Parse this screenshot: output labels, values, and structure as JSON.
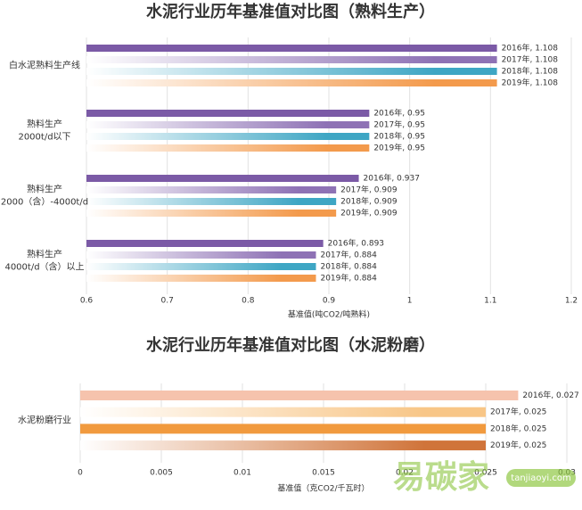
{
  "chart_data": [
    {
      "type": "hbar",
      "title": "水泥行业历年基准值对比图（熟料生产）",
      "categories": [
        [
          "白水泥熟料生产线"
        ],
        [
          "熟料生产",
          "2000t/d以下"
        ],
        [
          "熟料生产",
          "2000（含）-4000t/d"
        ],
        [
          "熟料生产",
          "4000t/d（含）以上"
        ]
      ],
      "series": [
        {
          "name": "2016年",
          "color": "#7b5aa6",
          "gradient": false,
          "values": [
            1.108,
            0.95,
            0.937,
            0.893
          ],
          "value_labels": [
            "2016年, 1.108",
            "2016年, 0.95",
            "2016年, 0.937",
            "2016年, 0.893"
          ]
        },
        {
          "name": "2017年",
          "color": "#8e72b5",
          "gradient": true,
          "values": [
            1.108,
            0.95,
            0.909,
            0.884
          ],
          "value_labels": [
            "2017年, 1.108",
            "2017年, 0.95",
            "2017年, 0.909",
            "2017年, 0.884"
          ]
        },
        {
          "name": "2018年",
          "color": "#3ea6c4",
          "gradient": true,
          "values": [
            1.108,
            0.95,
            0.909,
            0.884
          ],
          "value_labels": [
            "2018年, 1.108",
            "2018年, 0.95",
            "2018年, 0.909",
            "2018年, 0.884"
          ]
        },
        {
          "name": "2019年",
          "color": "#f39a4c",
          "gradient": true,
          "values": [
            1.108,
            0.95,
            0.909,
            0.884
          ],
          "value_labels": [
            "2019年, 1.108",
            "2019年, 0.95",
            "2019年, 0.909",
            "2019年, 0.884"
          ]
        }
      ],
      "xlim": [
        0.6,
        1.2
      ],
      "xticks": [
        0.6,
        0.7,
        0.8,
        0.9,
        1,
        1.1,
        1.2
      ],
      "grid": true,
      "x_label": "基准值(吨CO2/吨熟料)"
    },
    {
      "type": "hbar",
      "title": "水泥行业历年基准值对比图（水泥粉磨）",
      "categories": [
        [
          "水泥粉磨行业"
        ]
      ],
      "series": [
        {
          "name": "2016年",
          "color": "#f6c3ad",
          "gradient": false,
          "values": [
            0.027
          ],
          "value_labels": [
            "2016年, 0.027"
          ]
        },
        {
          "name": "2017年",
          "color": "#f8c687",
          "gradient": true,
          "values": [
            0.025
          ],
          "value_labels": [
            "2017年, 0.025"
          ]
        },
        {
          "name": "2018年",
          "color": "#f19a3e",
          "gradient": false,
          "values": [
            0.025
          ],
          "value_labels": [
            "2018年, 0.025"
          ]
        },
        {
          "name": "2019年",
          "color": "#d0743a",
          "gradient": true,
          "values": [
            0.025
          ],
          "value_labels": [
            "2019年, 0.025"
          ]
        }
      ],
      "xlim": [
        0,
        0.03
      ],
      "xticks": [
        0,
        0.005,
        0.01,
        0.015,
        0.02,
        0.025,
        0.03
      ],
      "grid": true,
      "x_label": "基准值（克CO2/千瓦时）"
    }
  ],
  "watermark": {
    "text": "易碳家",
    "site": "tanjiaoyi.com"
  }
}
